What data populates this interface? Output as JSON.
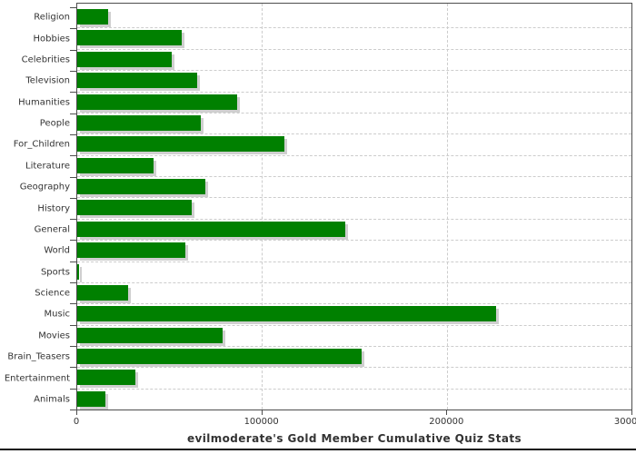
{
  "title": "evilmoderate's Gold Member Cumulative Quiz Stats",
  "colors": {
    "bar": "#008000",
    "bar_shadow": "#cfcfcf",
    "gridline": "#cccccc",
    "axis": "#4d4d4d",
    "text": "#333333"
  },
  "chart_data": {
    "type": "bar",
    "orientation": "horizontal",
    "title": "evilmoderate's Gold Member Cumulative Quiz Stats",
    "categories": [
      "Religion",
      "Hobbies",
      "Celebrities",
      "Television",
      "Humanities",
      "People",
      "For_Children",
      "Literature",
      "Geography",
      "History",
      "General",
      "World",
      "Sports",
      "Science",
      "Music",
      "Movies",
      "Brain_Teasers",
      "Entertainment",
      "Animals"
    ],
    "values": [
      16500,
      56500,
      51000,
      65000,
      86500,
      67000,
      112000,
      41500,
      69500,
      62000,
      145000,
      58500,
      1000,
      27500,
      226500,
      78500,
      154000,
      31500,
      15000
    ],
    "xlabel": "",
    "ylabel": "",
    "xlim": [
      0,
      300000
    ],
    "x_ticks": [
      0,
      100000,
      200000,
      300000
    ],
    "x_gridlines": [
      100000,
      200000
    ],
    "grid": true,
    "legend": false,
    "bar_color": "#008000"
  }
}
